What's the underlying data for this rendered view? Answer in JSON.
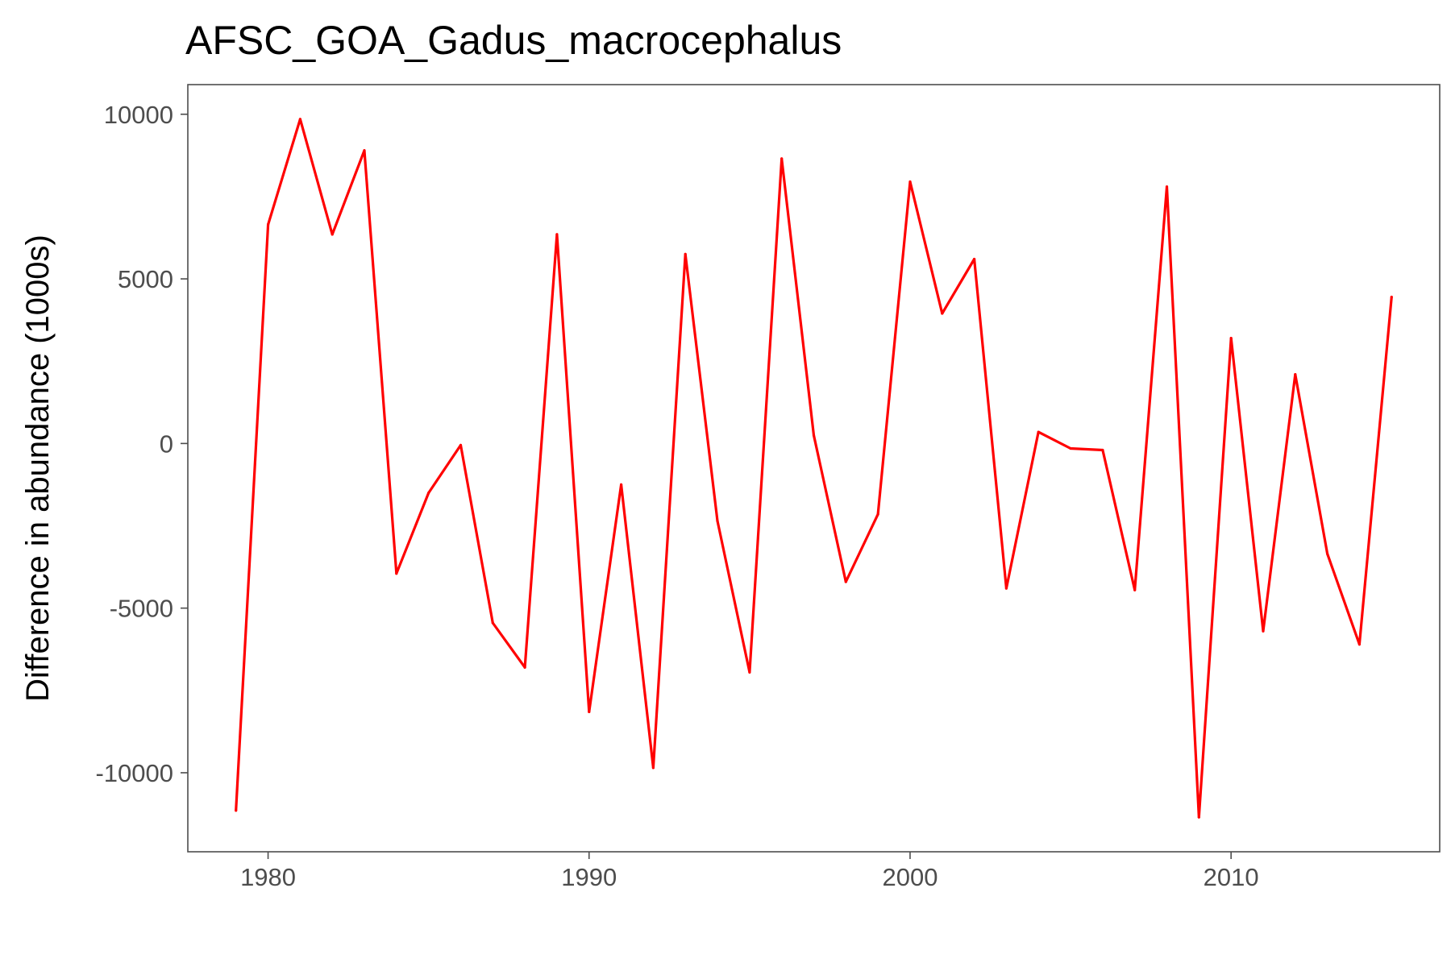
{
  "chart_data": {
    "type": "line",
    "title": "AFSC_GOA_Gadus_macrocephalus",
    "xlabel": "",
    "ylabel": "Difference in abundance (1000s)",
    "xlim": [
      1977.5,
      2016.5
    ],
    "ylim": [
      -12400,
      10900
    ],
    "x_ticks": [
      1980,
      1990,
      2000,
      2010
    ],
    "y_ticks": [
      10000,
      5000,
      0,
      -5000,
      -10000
    ],
    "x_tick_labels": [
      "1980",
      "1990",
      "2000",
      "2010"
    ],
    "y_tick_labels": [
      "10000",
      "5000",
      "0",
      "-5000",
      "-10000"
    ],
    "grid": false,
    "legend": "none",
    "colors": {
      "line": "#ff0000",
      "panel_border": "#4d4d4d",
      "tick_text": "#4d4d4d"
    },
    "series": [
      {
        "x": [
          1979,
          1980,
          1981,
          1982,
          1983,
          1984,
          1985,
          1986,
          1987,
          1988,
          1989,
          1990,
          1991,
          1992,
          1993,
          1994,
          1995,
          1996,
          1997,
          1998,
          1999,
          2000,
          2001,
          2002,
          2003,
          2004,
          2005,
          2006,
          2007,
          2008,
          2009,
          2010,
          2011,
          2012,
          2013,
          2014,
          2015
        ],
        "values": [
          -11150,
          6650,
          9850,
          6350,
          8900,
          -3950,
          -1500,
          -50,
          -5450,
          -6800,
          6350,
          -8150,
          -1250,
          -9850,
          5750,
          -2350,
          -6950,
          8650,
          250,
          -4200,
          -2150,
          7950,
          3950,
          5600,
          -4400,
          350,
          -150,
          -200,
          -4450,
          7800,
          -11350,
          3200,
          -5700,
          2100,
          -3350,
          -6100,
          4450
        ]
      }
    ]
  }
}
